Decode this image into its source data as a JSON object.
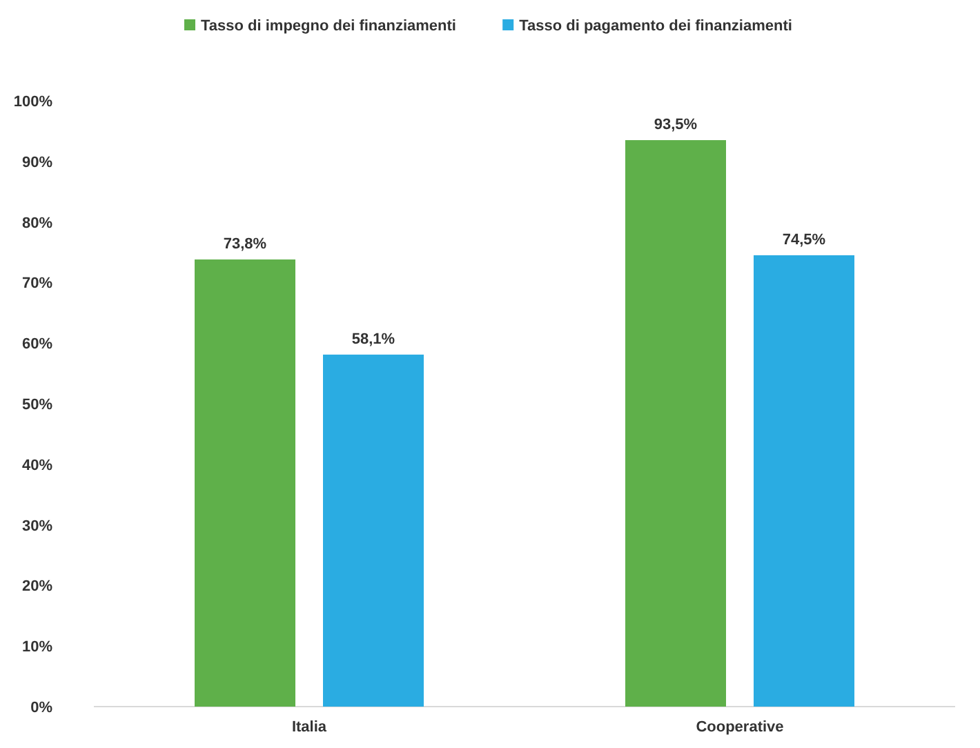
{
  "chart_data": {
    "type": "bar",
    "categories": [
      "Italia",
      "Cooperative"
    ],
    "series": [
      {
        "name": "Tasso di impegno dei finanziamenti",
        "color": "#5fb04a",
        "values": [
          73.8,
          93.5
        ],
        "value_labels": [
          "73,8%",
          "93,5%"
        ]
      },
      {
        "name": "Tasso di pagamento dei finanziamenti",
        "color": "#2aace2",
        "values": [
          58.1,
          74.5
        ],
        "value_labels": [
          "58,1%",
          "74,5%"
        ]
      }
    ],
    "ylim": [
      0,
      100
    ],
    "yticks": [
      {
        "value": 0,
        "label": "0%"
      },
      {
        "value": 10,
        "label": "10%"
      },
      {
        "value": 20,
        "label": "20%"
      },
      {
        "value": 30,
        "label": "30%"
      },
      {
        "value": 40,
        "label": "40%"
      },
      {
        "value": 50,
        "label": "50%"
      },
      {
        "value": 60,
        "label": "60%"
      },
      {
        "value": 70,
        "label": "70%"
      },
      {
        "value": 80,
        "label": "80%"
      },
      {
        "value": 90,
        "label": "90%"
      },
      {
        "value": 100,
        "label": "100%"
      }
    ],
    "legend": "top"
  }
}
